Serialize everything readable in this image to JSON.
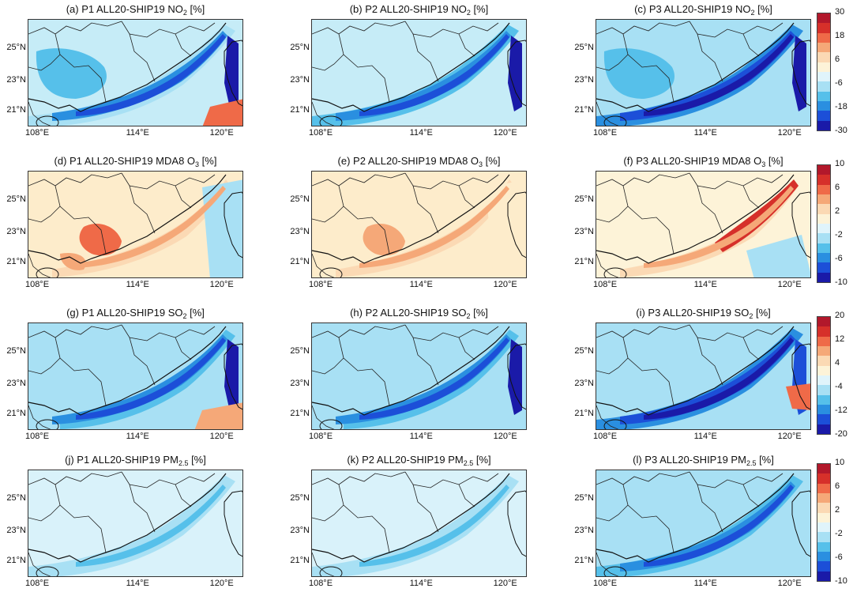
{
  "figure": {
    "lat_labels": [
      "25°N",
      "23°N",
      "21°N"
    ],
    "lon_labels": [
      "108°E",
      "114°E",
      "120°E"
    ]
  },
  "rows": [
    {
      "variable": "NO2",
      "colorbar": {
        "labels": [
          "30",
          "18",
          "6",
          "-6",
          "-18",
          "-30"
        ]
      },
      "panels": [
        {
          "title_main": "(a) P1 ALL20-SHIP19 NO",
          "title_sub": "2",
          "title_tail": " [%]",
          "style": "no2_p1"
        },
        {
          "title_main": "(b) P2 ALL20-SHIP19 NO",
          "title_sub": "2",
          "title_tail": " [%]",
          "style": "no2_p2"
        },
        {
          "title_main": "(c) P3 ALL20-SHIP19 NO",
          "title_sub": "2",
          "title_tail": " [%]",
          "style": "no2_p3"
        }
      ]
    },
    {
      "variable": "MDA8 O3",
      "colorbar": {
        "labels": [
          "10",
          "6",
          "2",
          "-2",
          "-6",
          "-10"
        ]
      },
      "panels": [
        {
          "title_main": "(d) P1 ALL20-SHIP19 MDA8 O",
          "title_sub": "3",
          "title_tail": " [%]",
          "style": "o3_p1"
        },
        {
          "title_main": "(e) P2 ALL20-SHIP19 MDA8 O",
          "title_sub": "3",
          "title_tail": " [%]",
          "style": "o3_p2"
        },
        {
          "title_main": "(f) P3 ALL20-SHIP19 MDA8 O",
          "title_sub": "3",
          "title_tail": " [%]",
          "style": "o3_p3"
        }
      ]
    },
    {
      "variable": "SO2",
      "colorbar": {
        "labels": [
          "20",
          "12",
          "4",
          "-4",
          "-12",
          "-20"
        ]
      },
      "panels": [
        {
          "title_main": "(g) P1 ALL20-SHIP19 SO",
          "title_sub": "2",
          "title_tail": " [%]",
          "style": "so2_p1"
        },
        {
          "title_main": "(h) P2 ALL20-SHIP19 SO",
          "title_sub": "2",
          "title_tail": " [%]",
          "style": "so2_p2"
        },
        {
          "title_main": "(i) P3 ALL20-SHIP19 SO",
          "title_sub": "2",
          "title_tail": " [%]",
          "style": "so2_p3"
        }
      ]
    },
    {
      "variable": "PM2.5",
      "colorbar": {
        "labels": [
          "10",
          "6",
          "2",
          "-2",
          "-6",
          "-10"
        ]
      },
      "panels": [
        {
          "title_main": "(j) P1 ALL20-SHIP19 PM",
          "title_sub": "2.5",
          "title_tail": " [%]",
          "style": "pm_p1"
        },
        {
          "title_main": "(k) P2 ALL20-SHIP19 PM",
          "title_sub": "2.5",
          "title_tail": " [%]",
          "style": "pm_p2"
        },
        {
          "title_main": "(l) P3 ALL20-SHIP19 PM",
          "title_sub": "2.5",
          "title_tail": " [%]",
          "style": "pm_p3"
        }
      ]
    }
  ],
  "colors": {
    "colorbar": [
      "#b2182b",
      "#d6302a",
      "#ef6a48",
      "#f5a878",
      "#fbd9b4",
      "#fdf3d8",
      "#e0f4fb",
      "#a8e0f4",
      "#56c0ea",
      "#2a8fe0",
      "#1c4fd8",
      "#1a1aa8"
    ],
    "land_no2": "#c6ecf7",
    "land_o3": "#fdeccb",
    "land_so2": "#a8e0f4",
    "land_pm": "#d9f2fa",
    "sea_light": "#a8e0f4",
    "sea_mid": "#56c0ea",
    "plume_mid": "#2a8fe0",
    "plume_strong": "#1c4fd8",
    "plume_max": "#1a1aa8",
    "red_light": "#f5a878",
    "red_mid": "#ef6a48",
    "red_strong": "#d6302a",
    "tan": "#fbd9b4"
  }
}
